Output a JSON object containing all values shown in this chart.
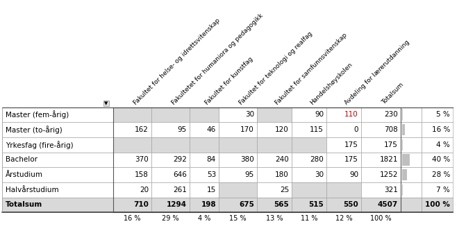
{
  "col_headers": [
    "Fakultet for helse- og idrettsvitenskap",
    "Fakultetet for humaniora og pedagogikk",
    "Fakultet for kunstfag",
    "Fakultet for teknologi og realfag",
    "Fakultet for samfunnsvitenskap",
    "Handelshøyskolen",
    "Avdeling for lærerutdanning",
    "Totalsum"
  ],
  "row_headers": [
    "Master (fem-årig)",
    "Master (to-årig)",
    "Yrkesfag (fire-årig)",
    "Bachelor",
    "Årstudium",
    "Halvårstudium",
    "Totalsum"
  ],
  "data": [
    [
      "",
      "",
      "",
      "30",
      "",
      "90",
      "110",
      "230"
    ],
    [
      "162",
      "95",
      "46",
      "170",
      "120",
      "115",
      "0",
      "708"
    ],
    [
      "",
      "",
      "",
      "",
      "",
      "",
      "175",
      "175"
    ],
    [
      "370",
      "292",
      "84",
      "380",
      "240",
      "280",
      "175",
      "1821"
    ],
    [
      "158",
      "646",
      "53",
      "95",
      "180",
      "30",
      "90",
      "1252"
    ],
    [
      "20",
      "261",
      "15",
      "",
      "25",
      "",
      "",
      "321"
    ],
    [
      "710",
      "1294",
      "198",
      "675",
      "565",
      "515",
      "550",
      "4507"
    ]
  ],
  "row_pct": [
    "5 %",
    "16 %",
    "4 %",
    "40 %",
    "28 %",
    "7 %",
    "100 %"
  ],
  "row_pct_val": [
    0.05,
    0.16,
    0.04,
    0.4,
    0.28,
    0.07,
    1.0
  ],
  "col_pct": [
    "16 %",
    "29 %",
    "4 %",
    "15 %",
    "13 %",
    "11 %",
    "12 %",
    "100 %"
  ],
  "highlight_110_color": "#c00000",
  "light_gray": "#d9d9d9",
  "bar_gray": "#bfbfbf",
  "totalsum_bg": "#d9d9d9",
  "white": "#ffffff",
  "border_color": "#999999",
  "text_color": "#000000"
}
